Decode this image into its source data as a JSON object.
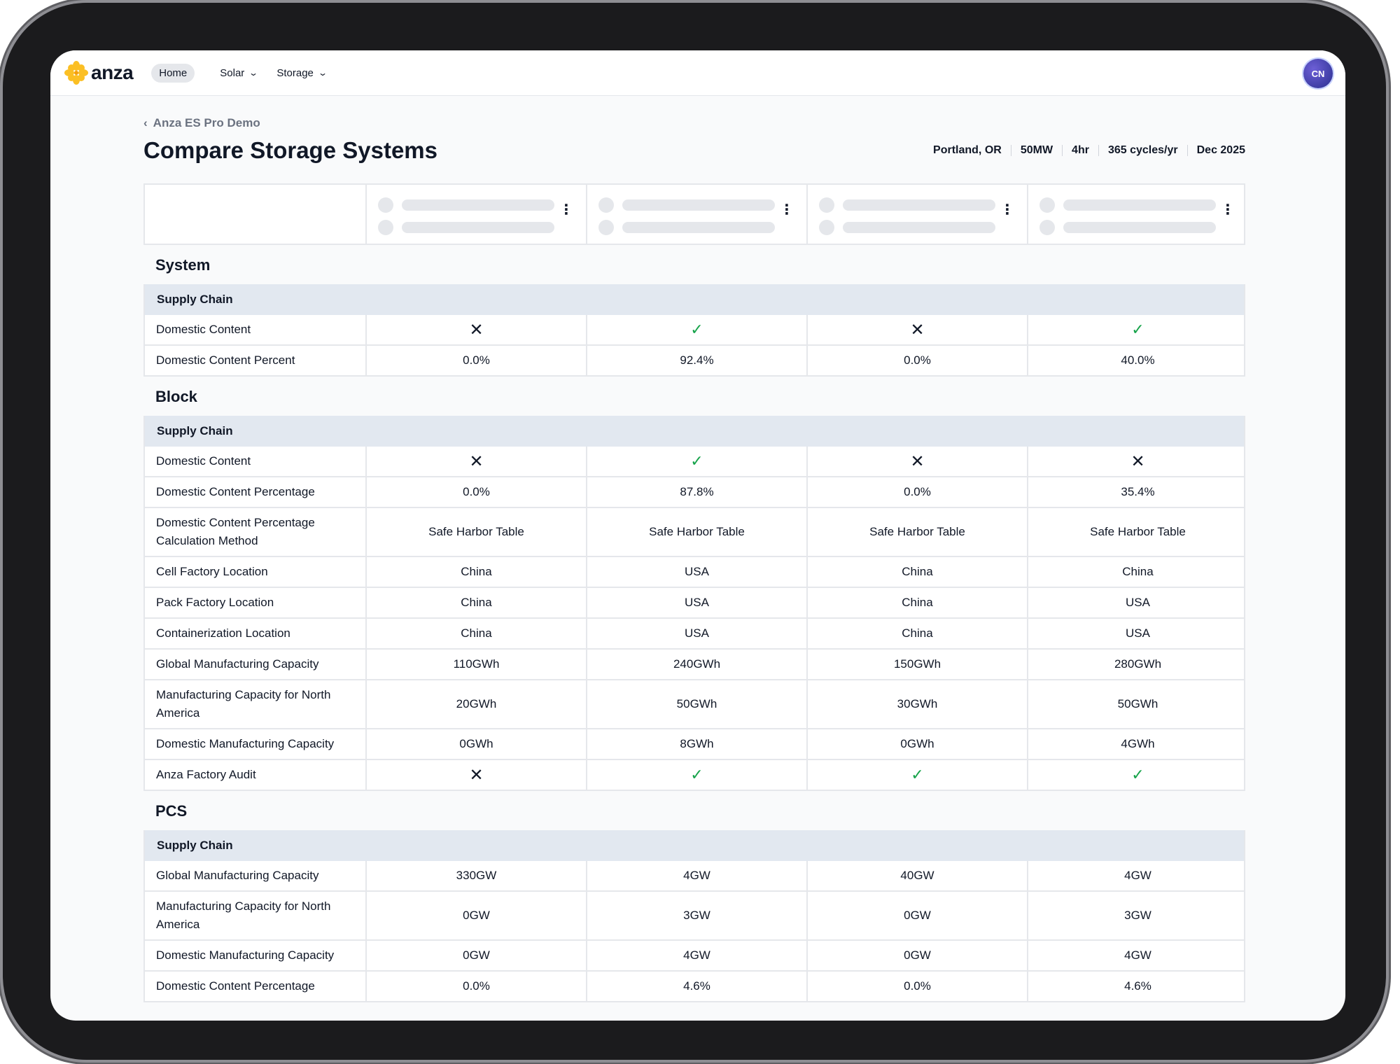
{
  "nav": {
    "logo_text": "anza",
    "items": [
      {
        "label": "Home",
        "active": true
      },
      {
        "label": "Solar",
        "dropdown": true
      },
      {
        "label": "Storage",
        "dropdown": true
      }
    ],
    "avatar_initials": "CN"
  },
  "breadcrumb": {
    "label": "Anza ES Pro Demo"
  },
  "page": {
    "title": "Compare Storage Systems"
  },
  "meta": [
    "Portland, OR",
    "50MW",
    "4hr",
    "365 cycles/yr",
    "Dec 2025"
  ],
  "colors": {
    "check": "#16a34a",
    "subhead_bg": "#e2e8f0",
    "logo_accent": "#fbbf24"
  },
  "sections": [
    {
      "title": "System",
      "subhead": "Supply Chain",
      "rows": [
        {
          "label": "Domestic Content",
          "values": [
            "no",
            "yes",
            "no",
            "yes"
          ],
          "kind": "bool"
        },
        {
          "label": "Domestic Content Percent",
          "values": [
            "0.0%",
            "92.4%",
            "0.0%",
            "40.0%"
          ]
        }
      ]
    },
    {
      "title": "Block",
      "subhead": "Supply Chain",
      "rows": [
        {
          "label": "Domestic Content",
          "values": [
            "no",
            "yes",
            "no",
            "no"
          ],
          "kind": "bool"
        },
        {
          "label": "Domestic Content Percentage",
          "values": [
            "0.0%",
            "87.8%",
            "0.0%",
            "35.4%"
          ]
        },
        {
          "label": "Domestic Content Percentage Calculation Method",
          "values": [
            "Safe Harbor Table",
            "Safe Harbor Table",
            "Safe Harbor Table",
            "Safe Harbor Table"
          ],
          "tall": true
        },
        {
          "label": "Cell Factory Location",
          "values": [
            "China",
            "USA",
            "China",
            "China"
          ]
        },
        {
          "label": "Pack Factory Location",
          "values": [
            "China",
            "USA",
            "China",
            "USA"
          ]
        },
        {
          "label": "Containerization Location",
          "values": [
            "China",
            "USA",
            "China",
            "USA"
          ]
        },
        {
          "label": "Global Manufacturing Capacity",
          "values": [
            "110GWh",
            "240GWh",
            "150GWh",
            "280GWh"
          ]
        },
        {
          "label": "Manufacturing Capacity for North America",
          "values": [
            "20GWh",
            "50GWh",
            "30GWh",
            "50GWh"
          ],
          "tall": true
        },
        {
          "label": "Domestic Manufacturing Capacity",
          "values": [
            "0GWh",
            "8GWh",
            "0GWh",
            "4GWh"
          ]
        },
        {
          "label": "Anza Factory Audit",
          "values": [
            "no",
            "yes",
            "yes",
            "yes"
          ],
          "kind": "bool"
        }
      ]
    },
    {
      "title": "PCS",
      "subhead": "Supply Chain",
      "rows": [
        {
          "label": "Global Manufacturing Capacity",
          "values": [
            "330GW",
            "4GW",
            "40GW",
            "4GW"
          ]
        },
        {
          "label": "Manufacturing Capacity for North America",
          "values": [
            "0GW",
            "3GW",
            "0GW",
            "3GW"
          ],
          "tall": true
        },
        {
          "label": "Domestic Manufacturing Capacity",
          "values": [
            "0GW",
            "4GW",
            "0GW",
            "4GW"
          ]
        },
        {
          "label": "Domestic Content Percentage",
          "values": [
            "0.0%",
            "4.6%",
            "0.0%",
            "4.6%"
          ]
        }
      ]
    }
  ]
}
